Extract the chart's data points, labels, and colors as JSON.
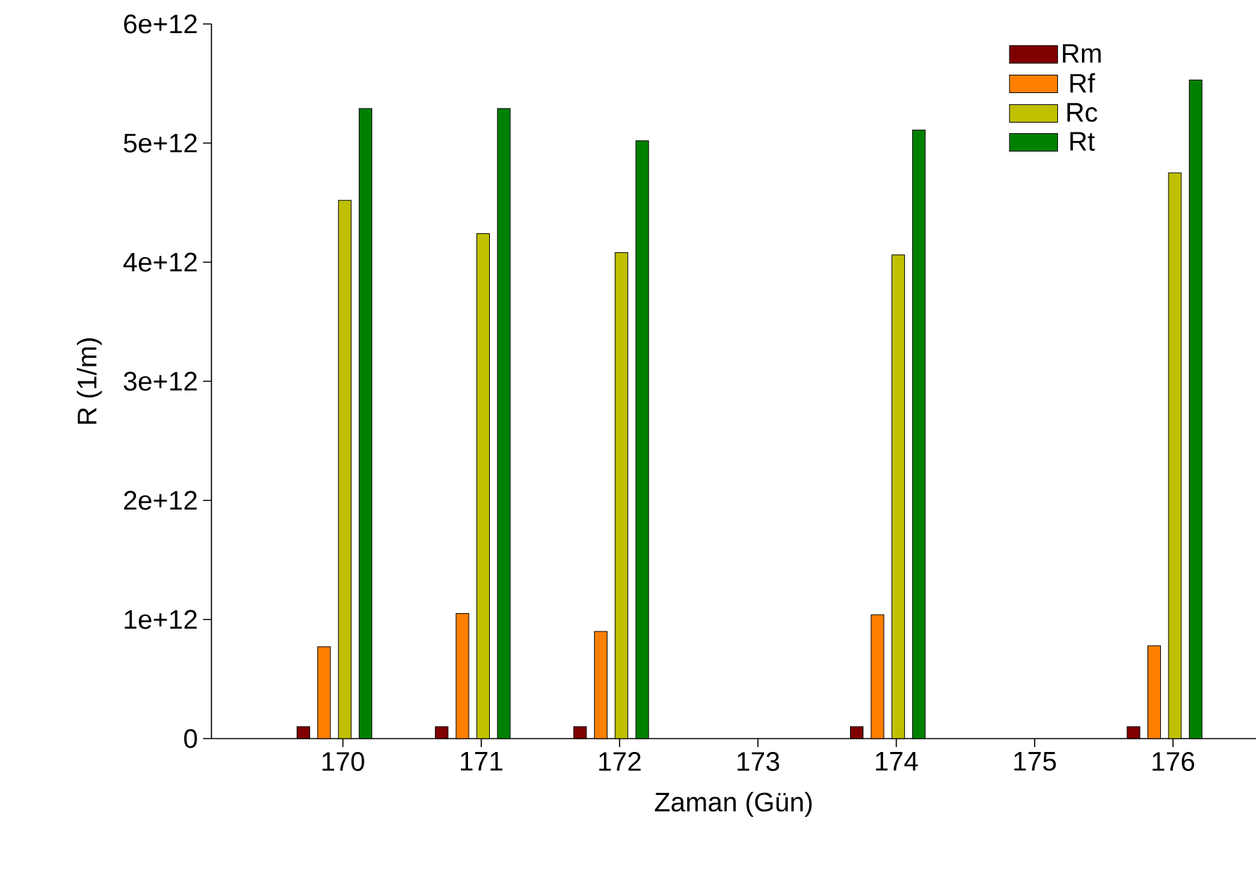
{
  "chart_data": {
    "type": "bar",
    "xlabel": "Zaman (Gün)",
    "ylabel": "R (1/m)",
    "x": [
      170,
      171,
      172,
      174,
      176
    ],
    "series": [
      {
        "name": "Rm",
        "color": "#800000",
        "values": [
          100000000000.0,
          100000000000.0,
          100000000000.0,
          100000000000.0,
          100000000000.0
        ]
      },
      {
        "name": "Rf",
        "color": "#ff8000",
        "values": [
          770000000000.0,
          1050000000000.0,
          900000000000.0,
          1040000000000.0,
          780000000000.0
        ]
      },
      {
        "name": "Rc",
        "color": "#c0c000",
        "values": [
          4520000000000.0,
          4240000000000.0,
          4080000000000.0,
          4060000000000.0,
          4750000000000.0
        ]
      },
      {
        "name": "Rt",
        "color": "#008000",
        "values": [
          5290000000000.0,
          5290000000000.0,
          5020000000000.0,
          5110000000000.0,
          5530000000000.0
        ]
      }
    ],
    "xlim": [
      169.05,
      176.6
    ],
    "xticks": [
      170,
      171,
      172,
      173,
      174,
      175,
      176
    ],
    "ylim": [
      0,
      6000000000000.0
    ],
    "yticks": [
      0,
      {
        "value": 1000000000000.0,
        "label": "1e+12"
      },
      {
        "value": 2000000000000.0,
        "label": "2e+12"
      },
      {
        "value": 3000000000000.0,
        "label": "3e+12"
      },
      {
        "value": 4000000000000.0,
        "label": "4e+12"
      },
      {
        "value": 5000000000000.0,
        "label": "5e+12"
      },
      {
        "value": 6000000000000.0,
        "label": "6e+12"
      }
    ],
    "grid": false,
    "legend": "top right"
  }
}
